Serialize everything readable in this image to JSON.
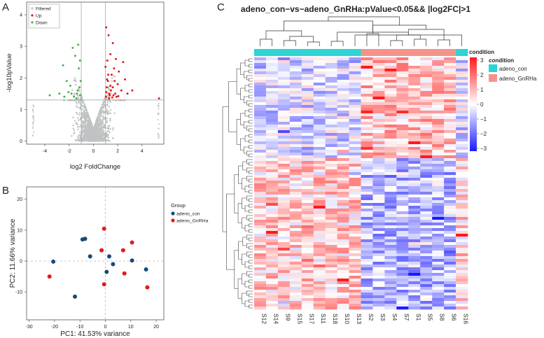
{
  "panel_letters": {
    "a": "A",
    "b": "B",
    "c": "C"
  },
  "chart_data": [
    {
      "type": "scatter",
      "panel": "A",
      "title": "",
      "xlabel": "log2 FoldChange",
      "ylabel": "-log10pValue",
      "xlim": [
        -5.5,
        5.8
      ],
      "ylim": [
        -0.1,
        4.4
      ],
      "xticks": [
        -4,
        -2,
        0,
        2,
        4
      ],
      "yticks": [
        0,
        1,
        2,
        3,
        4
      ],
      "thresholds": {
        "fc": [
          -1,
          1
        ],
        "p": 1.3
      },
      "legend": {
        "placement": "top-left",
        "items": [
          {
            "name": "Filtered",
            "color": "#bfc3c3"
          },
          {
            "name": "Up",
            "color": "#e41a1c"
          },
          {
            "name": "Down",
            "color": "#4daf4a"
          }
        ]
      },
      "series": [
        {
          "name": "Up",
          "color": "#e41a1c",
          "points": [
            [
              1.05,
              1.55
            ],
            [
              1.2,
              1.9
            ],
            [
              1.35,
              1.45
            ],
            [
              1.5,
              2.1
            ],
            [
              1.15,
              2.55
            ],
            [
              1.6,
              1.7
            ],
            [
              1.8,
              1.5
            ],
            [
              1.3,
              1.35
            ],
            [
              2.0,
              1.8
            ],
            [
              1.7,
              2.3
            ],
            [
              1.1,
              1.7
            ],
            [
              1.45,
              1.6
            ],
            [
              2.3,
              1.6
            ],
            [
              1.25,
              3.35
            ],
            [
              1.6,
              3.1
            ],
            [
              2.6,
              1.95
            ],
            [
              1.05,
              1.4
            ],
            [
              1.9,
              1.4
            ],
            [
              1.4,
              2.75
            ],
            [
              2.8,
              1.5
            ],
            [
              1.55,
              1.38
            ],
            [
              1.12,
              1.95
            ],
            [
              1.75,
              1.9
            ],
            [
              2.1,
              2.2
            ],
            [
              1.22,
              2.1
            ],
            [
              1.4,
              1.75
            ],
            [
              3.2,
              1.6
            ],
            [
              1.05,
              3.6
            ],
            [
              1.0,
              2.35
            ],
            [
              1.85,
              2.6
            ],
            [
              2.45,
              2.5
            ],
            [
              1.3,
              1.5
            ],
            [
              1.65,
              1.45
            ],
            [
              2.05,
              1.42
            ],
            [
              5.4,
              1.35
            ]
          ]
        },
        {
          "name": "Down",
          "color": "#4daf4a",
          "points": [
            [
              -1.1,
              1.45
            ],
            [
              -1.3,
              1.6
            ],
            [
              -1.6,
              1.4
            ],
            [
              -1.9,
              1.75
            ],
            [
              -1.2,
              2.3
            ],
            [
              -2.2,
              1.9
            ],
            [
              -1.5,
              2.7
            ],
            [
              -2.8,
              1.5
            ],
            [
              -1.05,
              1.9
            ],
            [
              -1.4,
              1.35
            ],
            [
              -2.5,
              2.4
            ],
            [
              -1.8,
              1.5
            ],
            [
              -1.15,
              1.7
            ],
            [
              -1.7,
              2.95
            ],
            [
              -3.6,
              1.45
            ],
            [
              -1.25,
              3.05
            ],
            [
              -2.05,
              1.55
            ],
            [
              -1.35,
              1.5
            ],
            [
              -1.1,
              2.55
            ],
            [
              -2.4,
              1.4
            ]
          ]
        }
      ],
      "filtered_note": "dense grey points"
    },
    {
      "type": "scatter",
      "panel": "B",
      "xlabel": "PC1: 41.53% variance",
      "ylabel": "PC2: 11.66% variance",
      "xlim": [
        -31,
        23
      ],
      "ylim": [
        -19,
        24
      ],
      "xticks": [
        -30,
        -20,
        -10,
        0,
        10,
        20
      ],
      "yticks": [
        -10,
        0,
        10,
        20
      ],
      "legend": {
        "title": "Group",
        "placement": "right"
      },
      "series": [
        {
          "name": "adeno_con",
          "color": "#154a7a",
          "points": [
            [
              -20.5,
              -0.2
            ],
            [
              -12,
              -11.5
            ],
            [
              -9,
              7
            ],
            [
              -8,
              7.2
            ],
            [
              -6,
              1.5
            ],
            [
              0.5,
              -3.5
            ],
            [
              1.5,
              1.5
            ],
            [
              3,
              -1
            ],
            [
              10.5,
              0.2
            ],
            [
              16,
              -2.7
            ]
          ]
        },
        {
          "name": "adeno_GnRHa",
          "color": "#e31a1c",
          "points": [
            [
              -22,
              -5
            ],
            [
              -1.5,
              3.5
            ],
            [
              -0.5,
              10.5
            ],
            [
              -0.5,
              -7.5
            ],
            [
              7,
              3.5
            ],
            [
              7.5,
              -4
            ],
            [
              10.5,
              6
            ],
            [
              16.5,
              -8.5
            ]
          ]
        }
      ]
    },
    {
      "type": "heatmap",
      "panel": "C",
      "title": "adeno_con−vs−adeno_GnRHa:pValue<0.05&& |log2FC|>1",
      "columns": [
        "S12",
        "S14",
        "S9",
        "S15",
        "S17",
        "S11",
        "S18",
        "S10",
        "S13",
        "S2",
        "S3",
        "S4",
        "S7",
        "S1",
        "S5",
        "S8",
        "S6",
        "S16"
      ],
      "column_groups": [
        "adeno_con",
        "adeno_con",
        "adeno_con",
        "adeno_con",
        "adeno_con",
        "adeno_con",
        "adeno_con",
        "adeno_con",
        "adeno_con",
        "adeno_GnRHa",
        "adeno_GnRHa",
        "adeno_GnRHa",
        "adeno_GnRHa",
        "adeno_GnRHa",
        "adeno_GnRHa",
        "adeno_GnRHa",
        "adeno_GnRHa",
        "adeno_con"
      ],
      "n_rows": 90,
      "color_scale": {
        "min": -3.5,
        "max": 3.5,
        "low": "#1a1aff",
        "mid": "#ffffff",
        "high": "#ff1a1a"
      },
      "scale_ticks": [
        "3",
        "2",
        "1",
        "0",
        "−1",
        "−2",
        "−3"
      ],
      "annotation": {
        "bar_label": "condition",
        "legend_title": "condition",
        "items": [
          {
            "name": "adeno_con",
            "color": "#2dd4d4"
          },
          {
            "name": "adeno_GnRHa",
            "color": "#f5938a"
          }
        ]
      }
    }
  ]
}
